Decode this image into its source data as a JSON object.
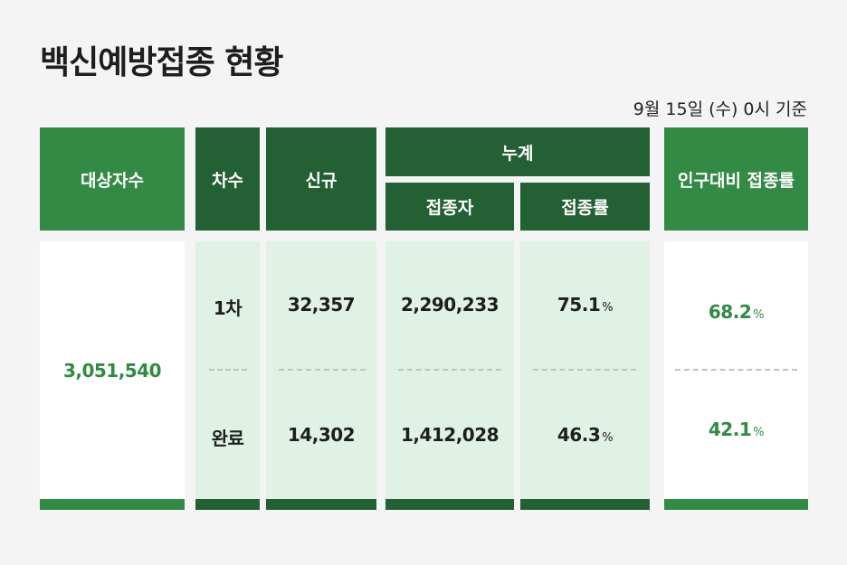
{
  "title": "백신예방접종 현황",
  "basis": "9월 15일 (수) 0시 기준",
  "headers": {
    "target": "대상자수",
    "dose": "차수",
    "new": "신규",
    "cumulative": "누계",
    "vaccinated": "접종자",
    "rate": "접종률",
    "population_rate": "인구대비 접종률"
  },
  "target_count": "3,051,540",
  "rows": [
    {
      "dose": "1차",
      "new": "32,357",
      "vaccinated": "2,290,233",
      "rate": "75.1",
      "population_rate": "68.2"
    },
    {
      "dose": "완료",
      "new": "14,302",
      "vaccinated": "1,412,028",
      "rate": "46.3",
      "population_rate": "42.1"
    }
  ],
  "percent_sign": "%",
  "colors": {
    "header_light": "#338a45",
    "header_dark": "#236034",
    "mint": "#e0f2e5",
    "green_text": "#2f8a43"
  }
}
